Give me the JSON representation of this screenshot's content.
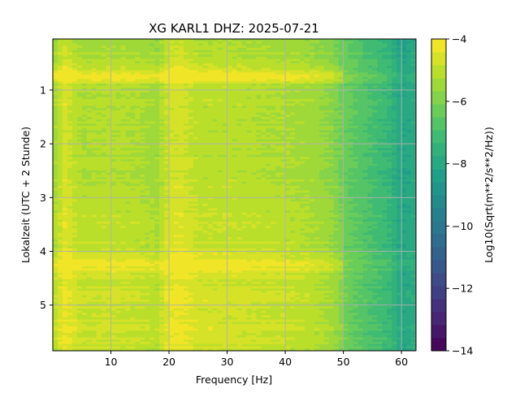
{
  "chart_data": {
    "type": "heatmap",
    "title": "XG KARL1  DHZ: 2025-07-21",
    "xlabel": "Frequency [Hz]",
    "ylabel": "Lokalzeit (UTC + 2 Stunde)",
    "xlim": [
      0,
      62.5
    ],
    "ylim": [
      5.85,
      0.05
    ],
    "y_inverted": true,
    "x_ticks": [
      10,
      20,
      30,
      40,
      50,
      60
    ],
    "y_ticks": [
      1,
      2,
      3,
      4,
      5
    ],
    "grid": true,
    "colormap": "viridis",
    "colorbar": {
      "label": "Log10(Sqrt(m**2/s**2/Hz))",
      "range": [
        -14,
        -4
      ],
      "ticks": [
        -4,
        -6,
        -8,
        -10,
        -12,
        -14
      ],
      "levels": 24
    },
    "frequency_profile": {
      "frequency_hz": [
        0,
        2,
        5,
        10,
        15,
        18,
        20,
        22,
        25,
        30,
        35,
        40,
        45,
        48,
        50,
        52,
        55,
        58,
        60,
        62.5
      ],
      "log10_amplitude": [
        -5.6,
        -4.7,
        -5.3,
        -5.2,
        -5.3,
        -5.5,
        -4.8,
        -4.7,
        -5.1,
        -5.1,
        -5.2,
        -5.3,
        -5.5,
        -5.8,
        -6.3,
        -6.6,
        -7.0,
        -7.4,
        -8.2,
        -7.9
      ]
    },
    "time_profile": {
      "local_time_h": [
        0.05,
        0.5,
        0.72,
        0.8,
        0.9,
        1.5,
        2.0,
        2.5,
        3.0,
        3.5,
        4.0,
        4.28,
        4.5,
        5.0,
        5.5,
        5.85
      ],
      "log10_amplitude_offset": [
        0.0,
        0.0,
        1.0,
        0.9,
        0.1,
        0.0,
        0.05,
        0.05,
        0.2,
        0.3,
        0.3,
        1.0,
        0.4,
        0.5,
        0.5,
        0.3
      ]
    },
    "bright_bands_local_time_h": [
      0.72,
      0.8,
      4.28
    ]
  }
}
